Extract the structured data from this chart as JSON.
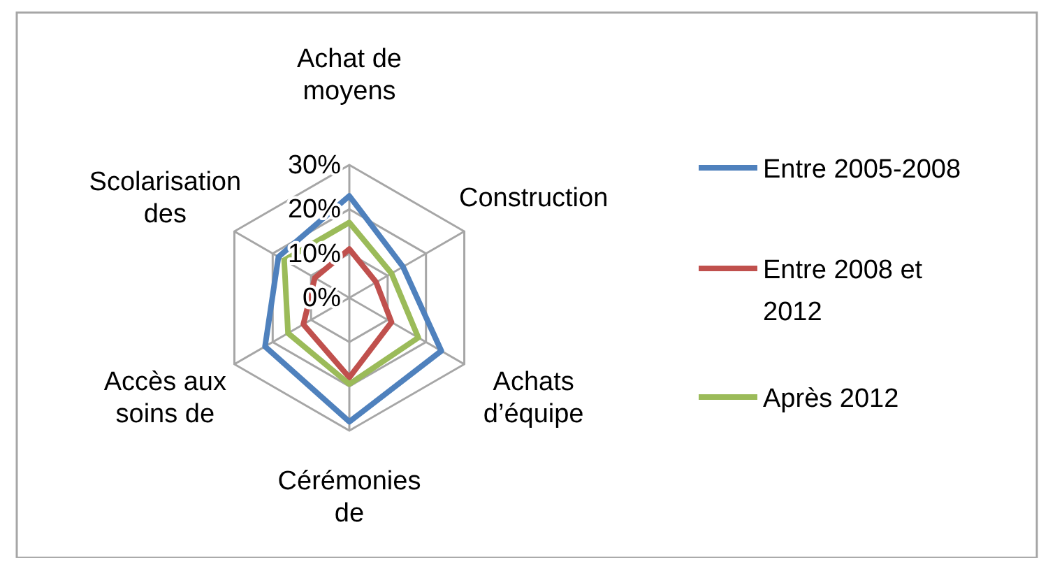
{
  "chart_data": {
    "type": "radar",
    "categories": [
      "Achat de moyens",
      "Construction",
      "Achats d’équipe",
      "Cérémonies de",
      "Accès aux soins de",
      "Scolarisation des"
    ],
    "series": [
      {
        "name": "Entre 2005-2008",
        "color": "#4f81bd",
        "values": [
          23,
          14,
          24,
          28,
          22,
          18.5
        ]
      },
      {
        "name": "Entre 2008 et 2012",
        "color": "#c0504d",
        "values": [
          11,
          7,
          11,
          18,
          12,
          9
        ]
      },
      {
        "name": "Après 2012",
        "color": "#9bbb59",
        "values": [
          17,
          11,
          18,
          19.5,
          16,
          17
        ]
      }
    ],
    "ylim": [
      0,
      30
    ],
    "yticks": [
      {
        "value": 0,
        "label": "0%"
      },
      {
        "value": 10,
        "label": "10%"
      },
      {
        "value": 20,
        "label": "20%"
      },
      {
        "value": 30,
        "label": "30%"
      }
    ],
    "grid": true,
    "legend": "right",
    "marker": "none",
    "line_style": "solid"
  }
}
